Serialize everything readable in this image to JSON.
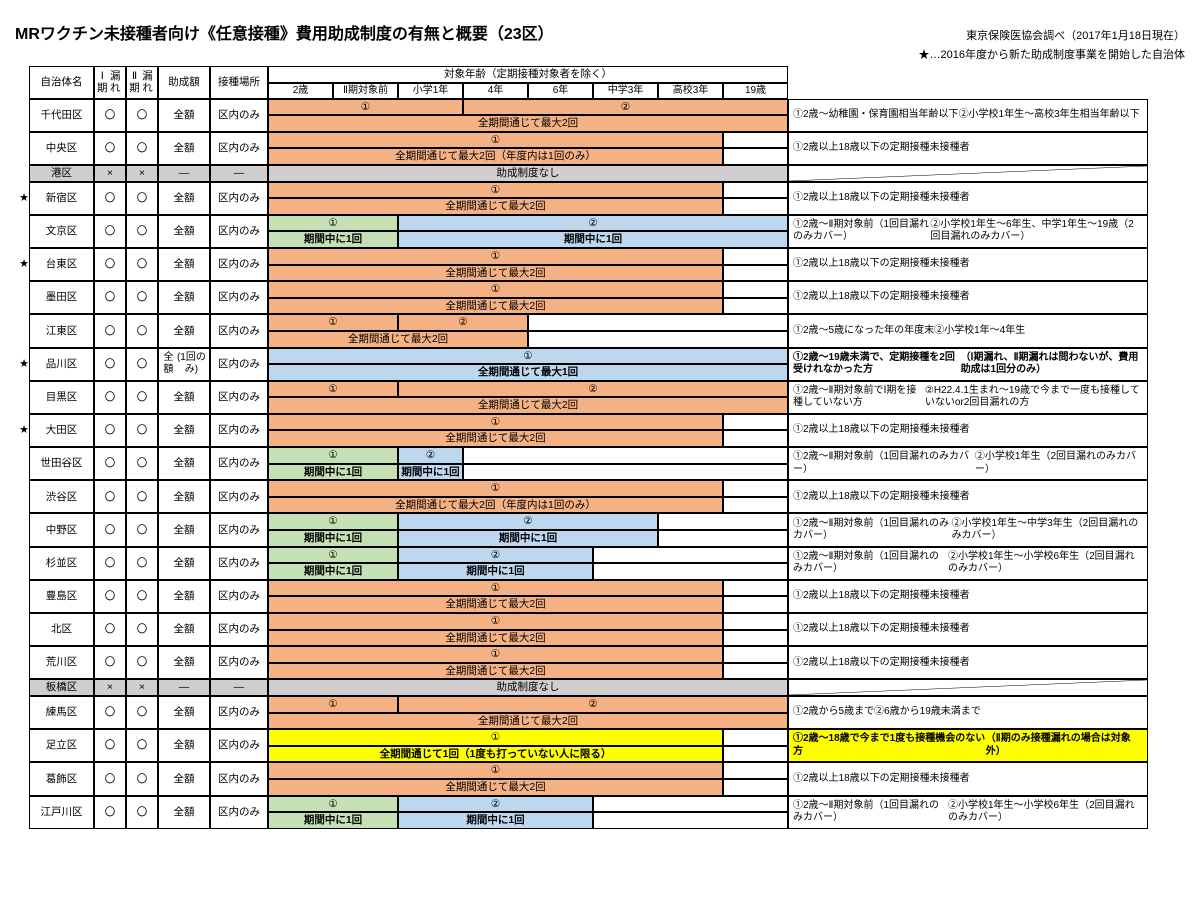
{
  "title": "MRワクチン未接種者向け《任意接種》費用助成制度の有無と概要（23区）",
  "source": "東京保険医協会調べ（2017年1月18日現在）",
  "legend": "★…2016年度から新た助成制度事業を開始した自治体",
  "headers": {
    "ward": "自治体名",
    "p1": "Ⅰ期\n漏れ",
    "p2": "Ⅱ期\n漏れ",
    "amount": "助成額",
    "place": "接種場所",
    "age_header": "対象年齢（定期接種対象者を除く）",
    "ages": [
      "2歳",
      "Ⅱ期対象前",
      "小学1年",
      "4年",
      "6年",
      "中学3年",
      "高校3年",
      "19歳"
    ]
  },
  "label": {
    "circle": "〇",
    "cross": "×",
    "dash": "―",
    "full": "全額",
    "full1": "全額\n(1回のみ)",
    "inward": "区内のみ",
    "none": "助成制度なし",
    "max2": "全期間通じて最大2回",
    "max2y": "全期間通じて最大2回（年度内は1回のみ）",
    "max1": "全期間通じて最大1回",
    "once1": "全期間通じて1回（1度も打っていない人に限る）",
    "during1": "期間中に1回",
    "n1": "①",
    "n2": "②"
  },
  "colors": {
    "orange": "#f4b183",
    "green": "#c5e0b4",
    "blue": "#bdd7ee",
    "gray": "#d0cece",
    "yellow": "#ffff00",
    "white": "#ffffff"
  },
  "wards": [
    {
      "star": "",
      "name": "千代田区",
      "p1": "〇",
      "p2": "〇",
      "amt": "全額",
      "loc": "区内のみ",
      "bars": [
        {
          "r": 0,
          "t": "①",
          "c": "orange",
          "s": 0,
          "e": 3
        },
        {
          "r": 0,
          "t": "②",
          "c": "orange",
          "s": 3,
          "e": 8
        },
        {
          "r": 1,
          "t": "全期間通じて最大2回",
          "c": "orange",
          "s": 0,
          "e": 8
        }
      ],
      "blank": [],
      "notes": [
        "①2歳～幼稚園・保育園相当年齢以下",
        "②小学校1年生～高校3年生相当年齢以下"
      ]
    },
    {
      "star": "",
      "name": "中央区",
      "p1": "〇",
      "p2": "〇",
      "amt": "全額",
      "loc": "区内のみ",
      "bars": [
        {
          "r": 0,
          "t": "①",
          "c": "orange",
          "s": 0,
          "e": 7
        },
        {
          "r": 1,
          "t": "全期間通じて最大2回（年度内は1回のみ）",
          "c": "orange",
          "s": 0,
          "e": 7
        }
      ],
      "blank": [
        {
          "r": 0,
          "s": 7,
          "e": 8
        },
        {
          "r": 1,
          "s": 7,
          "e": 8
        }
      ],
      "notes": [
        "①2歳以上18歳以下の定期接種未接種者"
      ]
    },
    {
      "star": "",
      "name": "港区",
      "p1": "×",
      "p2": "×",
      "amt": "―",
      "loc": "―",
      "gray": true,
      "bars": [
        {
          "r": 0,
          "t": "助成制度なし",
          "c": "gray",
          "s": 0,
          "e": 8,
          "rs": 2
        }
      ],
      "blank": [],
      "notes": [],
      "diag": true
    },
    {
      "star": "★",
      "name": "新宿区",
      "p1": "〇",
      "p2": "〇",
      "amt": "全額",
      "loc": "区内のみ",
      "bars": [
        {
          "r": 0,
          "t": "①",
          "c": "orange",
          "s": 0,
          "e": 7
        },
        {
          "r": 1,
          "t": "全期間通じて最大2回",
          "c": "orange",
          "s": 0,
          "e": 7
        }
      ],
      "blank": [
        {
          "r": 0,
          "s": 7,
          "e": 8
        },
        {
          "r": 1,
          "s": 7,
          "e": 8
        }
      ],
      "notes": [
        "①2歳以上18歳以下の定期接種未接種者"
      ]
    },
    {
      "star": "",
      "name": "文京区",
      "p1": "〇",
      "p2": "〇",
      "amt": "全額",
      "loc": "区内のみ",
      "bars": [
        {
          "r": 0,
          "t": "①",
          "c": "green",
          "s": 0,
          "e": 2
        },
        {
          "r": 0,
          "t": "②",
          "c": "blue",
          "s": 2,
          "e": 8
        },
        {
          "r": 1,
          "t": "期間中に1回",
          "c": "green",
          "s": 0,
          "e": 2,
          "b": true
        },
        {
          "r": 1,
          "t": "期間中に1回",
          "c": "blue",
          "s": 2,
          "e": 8,
          "b": true
        }
      ],
      "blank": [],
      "notes": [
        "①2歳～Ⅱ期対象前（1回目漏れのみカバー）",
        "②小学校1年生～6年生、中学1年生～19歳（2回目漏れのみカバー）"
      ]
    },
    {
      "star": "★",
      "name": "台東区",
      "p1": "〇",
      "p2": "〇",
      "amt": "全額",
      "loc": "区内のみ",
      "bars": [
        {
          "r": 0,
          "t": "①",
          "c": "orange",
          "s": 0,
          "e": 7
        },
        {
          "r": 1,
          "t": "全期間通じて最大2回",
          "c": "orange",
          "s": 0,
          "e": 7
        }
      ],
      "blank": [
        {
          "r": 0,
          "s": 7,
          "e": 8
        },
        {
          "r": 1,
          "s": 7,
          "e": 8
        }
      ],
      "notes": [
        "①2歳以上18歳以下の定期接種未接種者"
      ]
    },
    {
      "star": "",
      "name": "墨田区",
      "p1": "〇",
      "p2": "〇",
      "amt": "全額",
      "loc": "区内のみ",
      "bars": [
        {
          "r": 0,
          "t": "①",
          "c": "orange",
          "s": 0,
          "e": 7
        },
        {
          "r": 1,
          "t": "全期間通じて最大2回",
          "c": "orange",
          "s": 0,
          "e": 7
        }
      ],
      "blank": [
        {
          "r": 0,
          "s": 7,
          "e": 8
        },
        {
          "r": 1,
          "s": 7,
          "e": 8
        }
      ],
      "notes": [
        "①2歳以上18歳以下の定期接種未接種者"
      ]
    },
    {
      "star": "",
      "name": "江東区",
      "p1": "〇",
      "p2": "〇",
      "amt": "全額",
      "loc": "区内のみ",
      "bars": [
        {
          "r": 0,
          "t": "①",
          "c": "orange",
          "s": 0,
          "e": 2
        },
        {
          "r": 0,
          "t": "②",
          "c": "orange",
          "s": 2,
          "e": 4
        },
        {
          "r": 1,
          "t": "全期間通じて最大2回",
          "c": "orange",
          "s": 0,
          "e": 4
        }
      ],
      "blank": [
        {
          "r": 0,
          "s": 4,
          "e": 8
        },
        {
          "r": 1,
          "s": 4,
          "e": 8
        }
      ],
      "notes": [
        "①2歳～5歳になった年の年度末",
        "②小学校1年～4年生"
      ]
    },
    {
      "star": "★",
      "name": "品川区",
      "p1": "〇",
      "p2": "〇",
      "amt": "全額\n(1回のみ)",
      "loc": "区内のみ",
      "bars": [
        {
          "r": 0,
          "t": "①",
          "c": "blue",
          "s": 0,
          "e": 8
        },
        {
          "r": 1,
          "t": "全期間通じて最大1回",
          "c": "blue",
          "s": 0,
          "e": 8,
          "b": true
        }
      ],
      "blank": [],
      "notes": [
        "①2歳～19歳未満で、定期接種を2回受けれなかった方",
        "（Ⅰ期漏れ、Ⅱ期漏れは問わないが、費用助成は1回分のみ）"
      ],
      "nb": true
    },
    {
      "star": "",
      "name": "目黒区",
      "p1": "〇",
      "p2": "〇",
      "amt": "全額",
      "loc": "区内のみ",
      "bars": [
        {
          "r": 0,
          "t": "①",
          "c": "orange",
          "s": 0,
          "e": 2
        },
        {
          "r": 0,
          "t": "②",
          "c": "orange",
          "s": 2,
          "e": 8
        },
        {
          "r": 1,
          "t": "全期間通じて最大2回",
          "c": "orange",
          "s": 0,
          "e": 8
        }
      ],
      "blank": [],
      "notes": [
        "①2歳～Ⅱ期対象前でⅠ期を接種していない方",
        "②H22.4.1生まれ～19歳で今まで一度も接種していないor2回目漏れの方"
      ]
    },
    {
      "star": "★",
      "name": "大田区",
      "p1": "〇",
      "p2": "〇",
      "amt": "全額",
      "loc": "区内のみ",
      "bars": [
        {
          "r": 0,
          "t": "①",
          "c": "orange",
          "s": 0,
          "e": 7
        },
        {
          "r": 1,
          "t": "全期間通じて最大2回",
          "c": "orange",
          "s": 0,
          "e": 7
        }
      ],
      "blank": [
        {
          "r": 0,
          "s": 7,
          "e": 8
        },
        {
          "r": 1,
          "s": 7,
          "e": 8
        }
      ],
      "notes": [
        "①2歳以上18歳以下の定期接種未接種者"
      ]
    },
    {
      "star": "",
      "name": "世田谷区",
      "p1": "〇",
      "p2": "〇",
      "amt": "全額",
      "loc": "区内のみ",
      "bars": [
        {
          "r": 0,
          "t": "①",
          "c": "green",
          "s": 0,
          "e": 2
        },
        {
          "r": 0,
          "t": "②",
          "c": "blue",
          "s": 2,
          "e": 3
        },
        {
          "r": 1,
          "t": "期間中に1回",
          "c": "green",
          "s": 0,
          "e": 2,
          "b": true
        },
        {
          "r": 1,
          "t": "期間中に1回",
          "c": "blue",
          "s": 2,
          "e": 3,
          "b": true
        }
      ],
      "blank": [
        {
          "r": 0,
          "s": 3,
          "e": 8
        },
        {
          "r": 1,
          "s": 3,
          "e": 8
        }
      ],
      "notes": [
        "①2歳～Ⅱ期対象前（1回目漏れのみカバー）",
        "②小学校1年生（2回目漏れのみカバー）"
      ]
    },
    {
      "star": "",
      "name": "渋谷区",
      "p1": "〇",
      "p2": "〇",
      "amt": "全額",
      "loc": "区内のみ",
      "bars": [
        {
          "r": 0,
          "t": "①",
          "c": "orange",
          "s": 0,
          "e": 7
        },
        {
          "r": 1,
          "t": "全期間通じて最大2回（年度内は1回のみ）",
          "c": "orange",
          "s": 0,
          "e": 7
        }
      ],
      "blank": [
        {
          "r": 0,
          "s": 7,
          "e": 8
        },
        {
          "r": 1,
          "s": 7,
          "e": 8
        }
      ],
      "notes": [
        "①2歳以上18歳以下の定期接種未接種者"
      ]
    },
    {
      "star": "",
      "name": "中野区",
      "p1": "〇",
      "p2": "〇",
      "amt": "全額",
      "loc": "区内のみ",
      "bars": [
        {
          "r": 0,
          "t": "①",
          "c": "green",
          "s": 0,
          "e": 2
        },
        {
          "r": 0,
          "t": "②",
          "c": "blue",
          "s": 2,
          "e": 6
        },
        {
          "r": 1,
          "t": "期間中に1回",
          "c": "green",
          "s": 0,
          "e": 2,
          "b": true
        },
        {
          "r": 1,
          "t": "期間中に1回",
          "c": "blue",
          "s": 2,
          "e": 6,
          "b": true
        }
      ],
      "blank": [
        {
          "r": 0,
          "s": 6,
          "e": 8
        },
        {
          "r": 1,
          "s": 6,
          "e": 8
        }
      ],
      "notes": [
        "①2歳～Ⅱ期対象前（1回目漏れのみカバー）",
        "②小学校1年生～中学3年生（2回目漏れのみカバー）"
      ]
    },
    {
      "star": "",
      "name": "杉並区",
      "p1": "〇",
      "p2": "〇",
      "amt": "全額",
      "loc": "区内のみ",
      "bars": [
        {
          "r": 0,
          "t": "①",
          "c": "green",
          "s": 0,
          "e": 2
        },
        {
          "r": 0,
          "t": "②",
          "c": "blue",
          "s": 2,
          "e": 5
        },
        {
          "r": 1,
          "t": "期間中に1回",
          "c": "green",
          "s": 0,
          "e": 2,
          "b": true
        },
        {
          "r": 1,
          "t": "期間中に1回",
          "c": "blue",
          "s": 2,
          "e": 5,
          "b": true
        }
      ],
      "blank": [
        {
          "r": 0,
          "s": 5,
          "e": 8
        },
        {
          "r": 1,
          "s": 5,
          "e": 8
        }
      ],
      "notes": [
        "①2歳～Ⅱ期対象前（1回目漏れのみカバー）",
        "②小学校1年生～小学校6年生（2回目漏れのみカバー）"
      ]
    },
    {
      "star": "",
      "name": "豊島区",
      "p1": "〇",
      "p2": "〇",
      "amt": "全額",
      "loc": "区内のみ",
      "bars": [
        {
          "r": 0,
          "t": "①",
          "c": "orange",
          "s": 0,
          "e": 7
        },
        {
          "r": 1,
          "t": "全期間通じて最大2回",
          "c": "orange",
          "s": 0,
          "e": 7
        }
      ],
      "blank": [
        {
          "r": 0,
          "s": 7,
          "e": 8
        },
        {
          "r": 1,
          "s": 7,
          "e": 8
        }
      ],
      "notes": [
        "①2歳以上18歳以下の定期接種未接種者"
      ]
    },
    {
      "star": "",
      "name": "北区",
      "p1": "〇",
      "p2": "〇",
      "amt": "全額",
      "loc": "区内のみ",
      "bars": [
        {
          "r": 0,
          "t": "①",
          "c": "orange",
          "s": 0,
          "e": 7
        },
        {
          "r": 1,
          "t": "全期間通じて最大2回",
          "c": "orange",
          "s": 0,
          "e": 7
        }
      ],
      "blank": [
        {
          "r": 0,
          "s": 7,
          "e": 8
        },
        {
          "r": 1,
          "s": 7,
          "e": 8
        }
      ],
      "notes": [
        "①2歳以上18歳以下の定期接種未接種者"
      ]
    },
    {
      "star": "",
      "name": "荒川区",
      "p1": "〇",
      "p2": "〇",
      "amt": "全額",
      "loc": "区内のみ",
      "bars": [
        {
          "r": 0,
          "t": "①",
          "c": "orange",
          "s": 0,
          "e": 7
        },
        {
          "r": 1,
          "t": "全期間通じて最大2回",
          "c": "orange",
          "s": 0,
          "e": 7
        }
      ],
      "blank": [
        {
          "r": 0,
          "s": 7,
          "e": 8
        },
        {
          "r": 1,
          "s": 7,
          "e": 8
        }
      ],
      "notes": [
        "①2歳以上18歳以下の定期接種未接種者"
      ]
    },
    {
      "star": "",
      "name": "板橋区",
      "p1": "×",
      "p2": "×",
      "amt": "―",
      "loc": "―",
      "gray": true,
      "bars": [
        {
          "r": 0,
          "t": "助成制度なし",
          "c": "gray",
          "s": 0,
          "e": 8,
          "rs": 2
        }
      ],
      "blank": [],
      "notes": [],
      "diag": true
    },
    {
      "star": "",
      "name": "練馬区",
      "p1": "〇",
      "p2": "〇",
      "amt": "全額",
      "loc": "区内のみ",
      "bars": [
        {
          "r": 0,
          "t": "①",
          "c": "orange",
          "s": 0,
          "e": 2
        },
        {
          "r": 0,
          "t": "②",
          "c": "orange",
          "s": 2,
          "e": 8
        },
        {
          "r": 1,
          "t": "全期間通じて最大2回",
          "c": "orange",
          "s": 0,
          "e": 8
        }
      ],
      "blank": [],
      "notes": [
        "①2歳から5歳まで",
        "②6歳から19歳未満まで"
      ]
    },
    {
      "star": "",
      "name": "足立区",
      "p1": "〇",
      "p2": "〇",
      "amt": "全額",
      "loc": "区内のみ",
      "bars": [
        {
          "r": 0,
          "t": "①",
          "c": "yellow",
          "s": 0,
          "e": 7
        },
        {
          "r": 1,
          "t": "全期間通じて1回（1度も打っていない人に限る）",
          "c": "yellow",
          "s": 0,
          "e": 7,
          "b": true
        }
      ],
      "blank": [
        {
          "r": 0,
          "s": 7,
          "e": 8
        },
        {
          "r": 1,
          "s": 7,
          "e": 8
        }
      ],
      "notes": [
        "①2歳～18歳で今まで1度も接種機会のない方",
        "（Ⅱ期のみ接種漏れの場合は対象外）"
      ],
      "nb": true,
      "nc": "yellow"
    },
    {
      "star": "",
      "name": "葛飾区",
      "p1": "〇",
      "p2": "〇",
      "amt": "全額",
      "loc": "区内のみ",
      "bars": [
        {
          "r": 0,
          "t": "①",
          "c": "orange",
          "s": 0,
          "e": 7
        },
        {
          "r": 1,
          "t": "全期間通じて最大2回",
          "c": "orange",
          "s": 0,
          "e": 7
        }
      ],
      "blank": [
        {
          "r": 0,
          "s": 7,
          "e": 8
        },
        {
          "r": 1,
          "s": 7,
          "e": 8
        }
      ],
      "notes": [
        "①2歳以上18歳以下の定期接種未接種者"
      ]
    },
    {
      "star": "",
      "name": "江戸川区",
      "p1": "〇",
      "p2": "〇",
      "amt": "全額",
      "loc": "区内のみ",
      "bars": [
        {
          "r": 0,
          "t": "①",
          "c": "green",
          "s": 0,
          "e": 2
        },
        {
          "r": 0,
          "t": "②",
          "c": "blue",
          "s": 2,
          "e": 5
        },
        {
          "r": 1,
          "t": "期間中に1回",
          "c": "green",
          "s": 0,
          "e": 2,
          "b": true
        },
        {
          "r": 1,
          "t": "期間中に1回",
          "c": "blue",
          "s": 2,
          "e": 5,
          "b": true
        }
      ],
      "blank": [
        {
          "r": 0,
          "s": 5,
          "e": 8
        },
        {
          "r": 1,
          "s": 5,
          "e": 8
        }
      ],
      "notes": [
        "①2歳～Ⅱ期対象前（1回目漏れのみカバー）",
        "②小学校1年生～小学校6年生（2回目漏れのみカバー）"
      ]
    }
  ]
}
